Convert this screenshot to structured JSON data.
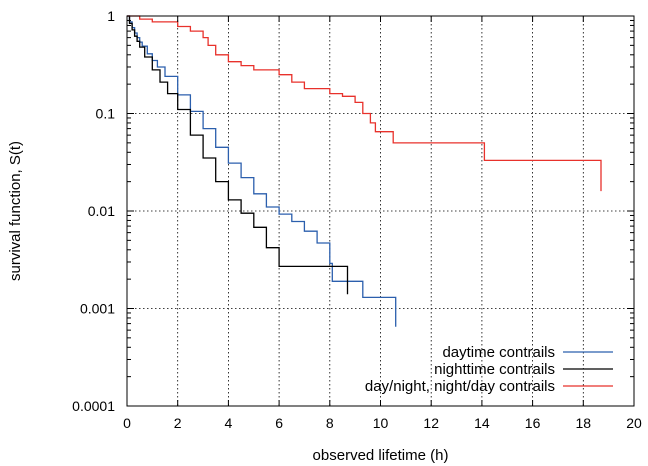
{
  "chart_data": {
    "type": "line",
    "title": "",
    "xlabel": "observed lifetime (h)",
    "ylabel": "survival function, S(t)",
    "xlim": [
      0,
      20
    ],
    "ylim": [
      0.0001,
      1
    ],
    "yscale": "log",
    "grid": true,
    "legend_position": "bottom-right",
    "x_ticks": [
      {
        "value": 0,
        "label": "0"
      },
      {
        "value": 2,
        "label": "2"
      },
      {
        "value": 4,
        "label": "4"
      },
      {
        "value": 6,
        "label": "6"
      },
      {
        "value": 8,
        "label": "8"
      },
      {
        "value": 10,
        "label": "10"
      },
      {
        "value": 12,
        "label": "12"
      },
      {
        "value": 14,
        "label": "14"
      },
      {
        "value": 16,
        "label": "16"
      },
      {
        "value": 18,
        "label": "18"
      },
      {
        "value": 20,
        "label": "20"
      }
    ],
    "y_ticks": [
      {
        "value": 1,
        "label": "1"
      },
      {
        "value": 0.1,
        "label": "0.1"
      },
      {
        "value": 0.01,
        "label": "0.01"
      },
      {
        "value": 0.001,
        "label": "0.001"
      },
      {
        "value": 0.0001,
        "label": "0.0001"
      }
    ],
    "series": [
      {
        "name": "daytime contrails",
        "color": "#2b5fad",
        "steps": [
          [
            0,
            1
          ],
          [
            0.1,
            0.87
          ],
          [
            0.2,
            0.76
          ],
          [
            0.3,
            0.67
          ],
          [
            0.4,
            0.6
          ],
          [
            0.5,
            0.54
          ],
          [
            0.6,
            0.49
          ],
          [
            0.8,
            0.41
          ],
          [
            1.0,
            0.35
          ],
          [
            1.2,
            0.3
          ],
          [
            1.5,
            0.24
          ],
          [
            2.0,
            0.155
          ],
          [
            2.5,
            0.105
          ],
          [
            3.0,
            0.07
          ],
          [
            3.5,
            0.045
          ],
          [
            4.0,
            0.031
          ],
          [
            4.5,
            0.022
          ],
          [
            5.0,
            0.015
          ],
          [
            5.5,
            0.011
          ],
          [
            6.0,
            0.0093
          ],
          [
            6.5,
            0.0078
          ],
          [
            7.0,
            0.0062
          ],
          [
            7.5,
            0.0047
          ],
          [
            8.0,
            0.0029
          ],
          [
            8.1,
            0.0019
          ],
          [
            9.0,
            0.0019
          ],
          [
            9.3,
            0.0013
          ],
          [
            10.6,
            0.0013
          ],
          [
            10.6,
            0.00065
          ]
        ]
      },
      {
        "name": "nighttime contrails",
        "color": "#000000",
        "steps": [
          [
            0,
            1
          ],
          [
            0.1,
            0.84
          ],
          [
            0.2,
            0.72
          ],
          [
            0.3,
            0.62
          ],
          [
            0.4,
            0.55
          ],
          [
            0.5,
            0.48
          ],
          [
            0.7,
            0.38
          ],
          [
            1.0,
            0.28
          ],
          [
            1.3,
            0.21
          ],
          [
            1.6,
            0.16
          ],
          [
            2.0,
            0.11
          ],
          [
            2.5,
            0.06
          ],
          [
            3.0,
            0.035
          ],
          [
            3.5,
            0.02
          ],
          [
            4.0,
            0.013
          ],
          [
            4.5,
            0.0095
          ],
          [
            5.0,
            0.0068
          ],
          [
            5.5,
            0.0042
          ],
          [
            6.0,
            0.0027
          ],
          [
            8.0,
            0.0027
          ],
          [
            8.7,
            0.0027
          ],
          [
            8.7,
            0.0014
          ]
        ]
      },
      {
        "name": "day/night, night/day contrails",
        "color": "#e8312b",
        "steps": [
          [
            0,
            1
          ],
          [
            0.5,
            0.93
          ],
          [
            1.0,
            0.87
          ],
          [
            2.0,
            0.78
          ],
          [
            2.5,
            0.7
          ],
          [
            3.0,
            0.6
          ],
          [
            3.2,
            0.5
          ],
          [
            3.5,
            0.4
          ],
          [
            4.0,
            0.34
          ],
          [
            4.5,
            0.31
          ],
          [
            5.0,
            0.28
          ],
          [
            6.0,
            0.25
          ],
          [
            6.5,
            0.21
          ],
          [
            7.0,
            0.18
          ],
          [
            8.0,
            0.16
          ],
          [
            8.5,
            0.15
          ],
          [
            9.0,
            0.13
          ],
          [
            9.3,
            0.1
          ],
          [
            9.6,
            0.08
          ],
          [
            9.8,
            0.065
          ],
          [
            10.5,
            0.05
          ],
          [
            14.0,
            0.05
          ],
          [
            14.1,
            0.033
          ],
          [
            18.7,
            0.033
          ],
          [
            18.7,
            0.016
          ]
        ]
      }
    ]
  }
}
